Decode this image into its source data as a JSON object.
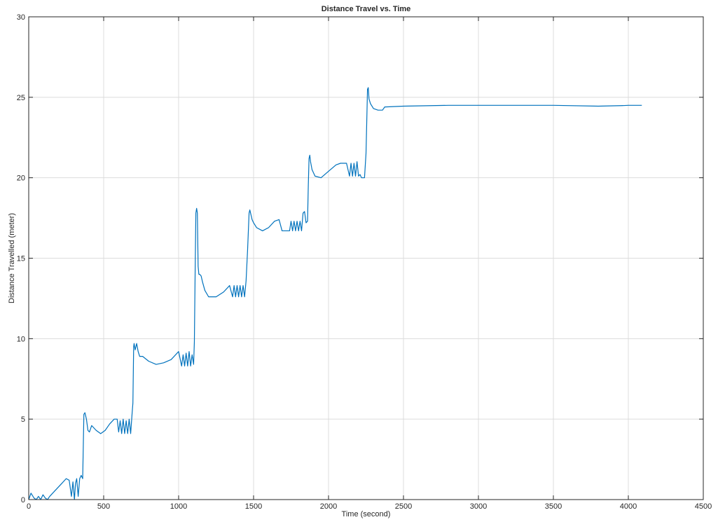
{
  "chart_data": {
    "type": "line",
    "title": "Distance Travel vs. Time",
    "xlabel": "Time (second)",
    "ylabel": "Distance Travelled (meter)",
    "xlim": [
      0,
      4500
    ],
    "ylim": [
      0,
      30
    ],
    "xticks": [
      0,
      500,
      1000,
      1500,
      2000,
      2500,
      3000,
      3500,
      4000,
      4500
    ],
    "yticks": [
      0,
      5,
      10,
      15,
      20,
      25,
      30
    ],
    "xtick_labels": [
      "0",
      "500",
      "1000",
      "1500",
      "2000",
      "2500",
      "3000",
      "3500",
      "4000",
      "4500"
    ],
    "ytick_labels": [
      "0",
      "5",
      "10",
      "15",
      "20",
      "25",
      "30"
    ],
    "grid": true,
    "series": [
      {
        "color": "#0072bd",
        "x": [
          0,
          15,
          35,
          50,
          65,
          80,
          95,
          110,
          125,
          140,
          160,
          190,
          220,
          250,
          270,
          285,
          295,
          305,
          312,
          320,
          330,
          340,
          350,
          360,
          368,
          375,
          385,
          395,
          405,
          420,
          450,
          480,
          510,
          540,
          570,
          590,
          600,
          610,
          620,
          630,
          640,
          650,
          660,
          670,
          680,
          690,
          695,
          700,
          703,
          710,
          720,
          730,
          740,
          760,
          800,
          850,
          900,
          950,
          1000,
          1020,
          1030,
          1040,
          1050,
          1060,
          1070,
          1080,
          1090,
          1100,
          1105,
          1110,
          1115,
          1120,
          1125,
          1130,
          1135,
          1140,
          1150,
          1160,
          1175,
          1200,
          1250,
          1300,
          1340,
          1360,
          1370,
          1380,
          1390,
          1400,
          1410,
          1420,
          1430,
          1440,
          1450,
          1460,
          1470,
          1475,
          1480,
          1490,
          1500,
          1520,
          1560,
          1600,
          1640,
          1670,
          1690,
          1700,
          1720,
          1740,
          1750,
          1760,
          1770,
          1780,
          1790,
          1800,
          1810,
          1820,
          1830,
          1840,
          1850,
          1860,
          1865,
          1870,
          1875,
          1880,
          1890,
          1910,
          1950,
          2000,
          2050,
          2080,
          2100,
          2120,
          2140,
          2150,
          2160,
          2170,
          2180,
          2190,
          2200,
          2210,
          2220,
          2240,
          2250,
          2260,
          2265,
          2270,
          2280,
          2300,
          2330,
          2360,
          2375,
          2380,
          2500,
          2800,
          3200,
          3500,
          3800,
          3950,
          4000,
          4090
        ],
        "y": [
          0.0,
          0.4,
          0.1,
          0.0,
          0.2,
          0.0,
          0.3,
          0.1,
          0.0,
          0.2,
          0.4,
          0.7,
          1.0,
          1.3,
          1.2,
          0.2,
          1.1,
          0.0,
          1.0,
          1.3,
          0.2,
          1.3,
          1.5,
          1.3,
          5.3,
          5.4,
          5.0,
          4.3,
          4.2,
          4.6,
          4.3,
          4.1,
          4.3,
          4.7,
          5.0,
          5.0,
          4.2,
          4.9,
          4.1,
          5.0,
          4.1,
          4.9,
          4.1,
          5.0,
          4.1,
          5.4,
          6.0,
          9.5,
          9.7,
          9.3,
          9.7,
          9.2,
          8.9,
          8.9,
          8.6,
          8.4,
          8.5,
          8.7,
          9.2,
          8.3,
          9.0,
          8.3,
          9.1,
          8.3,
          9.2,
          8.3,
          9.0,
          8.4,
          9.8,
          14.0,
          17.8,
          18.1,
          17.8,
          14.5,
          14.0,
          14.0,
          13.9,
          13.5,
          13.0,
          12.6,
          12.6,
          12.9,
          13.3,
          12.6,
          13.3,
          12.6,
          13.3,
          12.6,
          13.3,
          12.6,
          13.3,
          12.6,
          13.6,
          15.5,
          17.8,
          18.0,
          17.8,
          17.4,
          17.2,
          16.9,
          16.7,
          16.9,
          17.3,
          17.4,
          16.7,
          16.7,
          16.7,
          16.7,
          17.3,
          16.7,
          17.3,
          16.7,
          17.3,
          16.7,
          17.3,
          16.7,
          17.8,
          17.9,
          17.2,
          17.3,
          19.5,
          21.2,
          21.4,
          21.0,
          20.5,
          20.1,
          20.0,
          20.4,
          20.8,
          20.9,
          20.9,
          20.9,
          20.1,
          20.9,
          20.1,
          20.9,
          20.1,
          21.0,
          20.1,
          20.2,
          20.0,
          20.0,
          21.5,
          25.5,
          25.6,
          24.9,
          24.6,
          24.3,
          24.2,
          24.2,
          24.4,
          24.4,
          24.45,
          24.5,
          24.5,
          24.5,
          24.45,
          24.48,
          24.5,
          24.5
        ]
      }
    ]
  }
}
